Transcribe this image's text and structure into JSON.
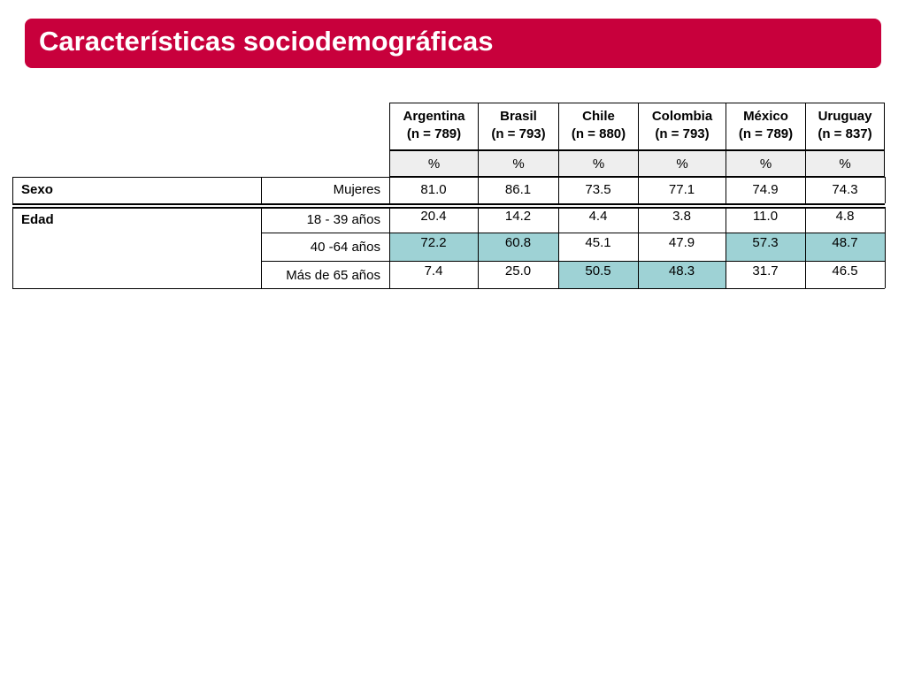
{
  "title": "Características sociodemográficas",
  "columns": [
    {
      "name": "Argentina",
      "n": "(n = 789)",
      "unit": "%"
    },
    {
      "name": "Brasil",
      "n": "(n = 793)",
      "unit": "%"
    },
    {
      "name": "Chile",
      "n": "(n = 880)",
      "unit": "%"
    },
    {
      "name": "Colombia",
      "n": "(n = 793)",
      "unit": "%"
    },
    {
      "name": "México",
      "n": "(n = 789)",
      "unit": "%"
    },
    {
      "name": "Uruguay",
      "n": "(n = 837)",
      "unit": "%"
    }
  ],
  "sections": [
    {
      "label": "Sexo",
      "rows": [
        {
          "label": "Mujeres",
          "values": [
            "81.0",
            "86.1",
            "73.5",
            "77.1",
            "74.9",
            "74.3"
          ],
          "highlight": [
            false,
            false,
            false,
            false,
            false,
            false
          ]
        }
      ]
    },
    {
      "label": "Edad",
      "rows": [
        {
          "label": "18 - 39 años",
          "values": [
            "20.4",
            "14.2",
            "4.4",
            "3.8",
            "11.0",
            "4.8"
          ],
          "highlight": [
            false,
            false,
            false,
            false,
            false,
            false
          ]
        },
        {
          "label": "40 -64 años",
          "values": [
            "72.2",
            "60.8",
            "45.1",
            "47.9",
            "57.3",
            "48.7"
          ],
          "highlight": [
            true,
            true,
            false,
            false,
            true,
            true
          ]
        },
        {
          "label": "Más de 65 años",
          "values": [
            "7.4",
            "25.0",
            "50.5",
            "48.3",
            "31.7",
            "46.5"
          ],
          "highlight": [
            false,
            false,
            true,
            true,
            false,
            false
          ]
        }
      ]
    }
  ],
  "colors": {
    "title_bg": "#c8003c",
    "highlight": "#9ed2d5",
    "header_bg": "#eeeeee"
  }
}
